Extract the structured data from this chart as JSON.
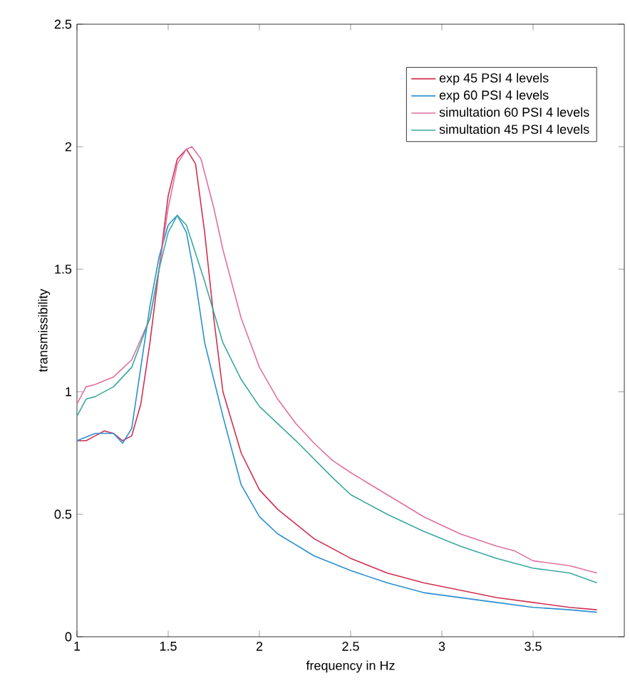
{
  "chart_data": {
    "type": "line",
    "xlabel": "frequency in Hz",
    "ylabel": "transmissibility",
    "xlim": [
      1,
      4
    ],
    "ylim": [
      0,
      2.5
    ],
    "xticks": [
      1,
      1.5,
      2,
      2.5,
      3,
      3.5
    ],
    "yticks": [
      0,
      0.5,
      1,
      1.5,
      2,
      2.5
    ],
    "legend": "top right",
    "grid": false,
    "series": [
      {
        "name": "exp 45 PSI 4 levels",
        "color": "#d03050",
        "x": [
          1.0,
          1.05,
          1.1,
          1.15,
          1.2,
          1.25,
          1.3,
          1.35,
          1.4,
          1.45,
          1.5,
          1.55,
          1.6,
          1.65,
          1.7,
          1.75,
          1.8,
          1.9,
          2.0,
          2.1,
          2.3,
          2.5,
          2.7,
          2.9,
          3.1,
          3.3,
          3.5,
          3.7,
          3.85
        ],
        "values": [
          0.8,
          0.8,
          0.82,
          0.84,
          0.83,
          0.8,
          0.82,
          0.95,
          1.2,
          1.5,
          1.8,
          1.95,
          1.99,
          1.93,
          1.65,
          1.3,
          1.0,
          0.75,
          0.6,
          0.52,
          0.4,
          0.32,
          0.26,
          0.22,
          0.19,
          0.16,
          0.14,
          0.12,
          0.11
        ]
      },
      {
        "name": "exp 60 PSI 4 levels",
        "color": "#2a8fd0",
        "x": [
          1.0,
          1.1,
          1.2,
          1.25,
          1.3,
          1.35,
          1.4,
          1.45,
          1.5,
          1.55,
          1.6,
          1.65,
          1.7,
          1.8,
          1.9,
          2.0,
          2.1,
          2.3,
          2.5,
          2.7,
          2.9,
          3.1,
          3.3,
          3.5,
          3.7,
          3.85
        ],
        "values": [
          0.8,
          0.83,
          0.83,
          0.79,
          0.85,
          1.1,
          1.35,
          1.55,
          1.68,
          1.72,
          1.65,
          1.45,
          1.2,
          0.9,
          0.62,
          0.49,
          0.42,
          0.33,
          0.27,
          0.22,
          0.18,
          0.16,
          0.14,
          0.12,
          0.11,
          0.1
        ]
      },
      {
        "name": "simultation 60 PSI 4 levels",
        "color": "#e070a0",
        "x": [
          1.0,
          1.05,
          1.1,
          1.2,
          1.3,
          1.4,
          1.45,
          1.5,
          1.55,
          1.6,
          1.63,
          1.68,
          1.75,
          1.8,
          1.9,
          2.0,
          2.1,
          2.2,
          2.3,
          2.4,
          2.5,
          2.7,
          2.9,
          3.1,
          3.3,
          3.4,
          3.5,
          3.7,
          3.85
        ],
        "values": [
          0.95,
          1.02,
          1.03,
          1.06,
          1.13,
          1.3,
          1.5,
          1.75,
          1.93,
          1.99,
          2.0,
          1.95,
          1.75,
          1.58,
          1.3,
          1.1,
          0.97,
          0.87,
          0.79,
          0.72,
          0.67,
          0.58,
          0.49,
          0.42,
          0.37,
          0.35,
          0.31,
          0.29,
          0.26
        ]
      },
      {
        "name": "simultation 45 PSI 4 levels",
        "color": "#3aa8a0",
        "x": [
          1.0,
          1.05,
          1.1,
          1.2,
          1.3,
          1.4,
          1.45,
          1.5,
          1.55,
          1.6,
          1.7,
          1.8,
          1.9,
          2.0,
          2.2,
          2.4,
          2.5,
          2.7,
          2.9,
          3.1,
          3.3,
          3.5,
          3.7,
          3.85
        ],
        "values": [
          0.9,
          0.97,
          0.98,
          1.02,
          1.1,
          1.3,
          1.5,
          1.65,
          1.72,
          1.68,
          1.45,
          1.2,
          1.05,
          0.94,
          0.8,
          0.65,
          0.58,
          0.5,
          0.43,
          0.37,
          0.32,
          0.28,
          0.26,
          0.22
        ]
      }
    ]
  }
}
